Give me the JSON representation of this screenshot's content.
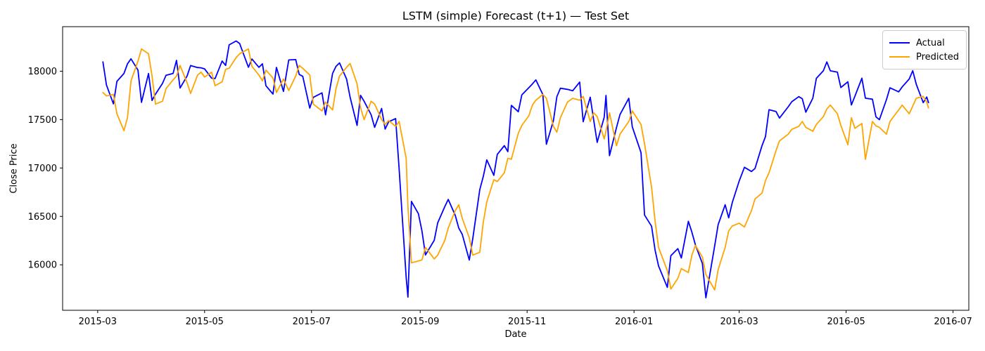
{
  "figure": {
    "title": "LSTM (simple) Forecast (t+1) — Test Set",
    "xlabel": "Date",
    "ylabel": "Close Price"
  },
  "chart_data": {
    "type": "line",
    "title": "LSTM (simple) Forecast (t+1) — Test Set",
    "xlabel": "Date",
    "ylabel": "Close Price",
    "grid": false,
    "legend_position": "upper right",
    "xlim": [
      "2015-02-09",
      "2016-07-10"
    ],
    "ylim": [
      15530,
      18460
    ],
    "x_ticks": [
      {
        "date": "2015-03-01",
        "label": "2015-03"
      },
      {
        "date": "2015-05-01",
        "label": "2015-05"
      },
      {
        "date": "2015-07-01",
        "label": "2015-07"
      },
      {
        "date": "2015-09-01",
        "label": "2015-09"
      },
      {
        "date": "2015-11-01",
        "label": "2015-11"
      },
      {
        "date": "2016-01-01",
        "label": "2016-01"
      },
      {
        "date": "2016-03-01",
        "label": "2016-03"
      },
      {
        "date": "2016-05-01",
        "label": "2016-05"
      },
      {
        "date": "2016-07-01",
        "label": "2016-07"
      }
    ],
    "y_ticks": [
      16000,
      16500,
      17000,
      17500,
      18000
    ],
    "dates": [
      "2015-03-04",
      "2015-03-06",
      "2015-03-10",
      "2015-03-12",
      "2015-03-16",
      "2015-03-18",
      "2015-03-20",
      "2015-03-24",
      "2015-03-26",
      "2015-03-30",
      "2015-04-01",
      "2015-04-03",
      "2015-04-07",
      "2015-04-09",
      "2015-04-13",
      "2015-04-15",
      "2015-04-17",
      "2015-04-21",
      "2015-04-23",
      "2015-04-27",
      "2015-04-29",
      "2015-05-01",
      "2015-05-05",
      "2015-05-07",
      "2015-05-11",
      "2015-05-13",
      "2015-05-15",
      "2015-05-19",
      "2015-05-21",
      "2015-05-26",
      "2015-05-28",
      "2015-06-01",
      "2015-06-03",
      "2015-06-05",
      "2015-06-09",
      "2015-06-11",
      "2015-06-15",
      "2015-06-18",
      "2015-06-22",
      "2015-06-24",
      "2015-06-26",
      "2015-06-30",
      "2015-07-02",
      "2015-07-07",
      "2015-07-09",
      "2015-07-13",
      "2015-07-15",
      "2015-07-17",
      "2015-07-21",
      "2015-07-23",
      "2015-07-27",
      "2015-07-29",
      "2015-07-31",
      "2015-08-04",
      "2015-08-06",
      "2015-08-10",
      "2015-08-12",
      "2015-08-14",
      "2015-08-18",
      "2015-08-20",
      "2015-08-24",
      "2015-08-25",
      "2015-08-27",
      "2015-08-31",
      "2015-09-02",
      "2015-09-04",
      "2015-09-09",
      "2015-09-11",
      "2015-09-15",
      "2015-09-17",
      "2015-09-21",
      "2015-09-23",
      "2015-09-25",
      "2015-09-29",
      "2015-10-01",
      "2015-10-05",
      "2015-10-07",
      "2015-10-09",
      "2015-10-13",
      "2015-10-15",
      "2015-10-19",
      "2015-10-21",
      "2015-10-23",
      "2015-10-27",
      "2015-10-29",
      "2015-11-02",
      "2015-11-04",
      "2015-11-06",
      "2015-11-10",
      "2015-11-12",
      "2015-11-16",
      "2015-11-18",
      "2015-11-20",
      "2015-11-24",
      "2015-11-27",
      "2015-12-01",
      "2015-12-03",
      "2015-12-07",
      "2015-12-09",
      "2015-12-11",
      "2015-12-15",
      "2015-12-16",
      "2015-12-18",
      "2015-12-22",
      "2015-12-24",
      "2015-12-29",
      "2015-12-31",
      "2016-01-05",
      "2016-01-07",
      "2016-01-11",
      "2016-01-13",
      "2016-01-15",
      "2016-01-20",
      "2016-01-22",
      "2016-01-26",
      "2016-01-28",
      "2016-02-01",
      "2016-02-03",
      "2016-02-05",
      "2016-02-09",
      "2016-02-11",
      "2016-02-16",
      "2016-02-18",
      "2016-02-22",
      "2016-02-24",
      "2016-02-26",
      "2016-03-01",
      "2016-03-04",
      "2016-03-08",
      "2016-03-10",
      "2016-03-14",
      "2016-03-16",
      "2016-03-18",
      "2016-03-22",
      "2016-03-24",
      "2016-03-29",
      "2016-03-31",
      "2016-04-04",
      "2016-04-06",
      "2016-04-08",
      "2016-04-12",
      "2016-04-14",
      "2016-04-18",
      "2016-04-20",
      "2016-04-22",
      "2016-04-26",
      "2016-04-28",
      "2016-05-02",
      "2016-05-04",
      "2016-05-06",
      "2016-05-10",
      "2016-05-12",
      "2016-05-16",
      "2016-05-18",
      "2016-05-20",
      "2016-05-24",
      "2016-05-26",
      "2016-05-31",
      "2016-06-02",
      "2016-06-06",
      "2016-06-08",
      "2016-06-10",
      "2016-06-14",
      "2016-06-16",
      "2016-06-17"
    ],
    "series": [
      {
        "name": "Actual",
        "color": "#0000ff",
        "values": [
          18096,
          17857,
          17663,
          17895,
          17977,
          18076,
          18128,
          18011,
          17678,
          17976,
          17698,
          17763,
          17875,
          17958,
          17977,
          18112,
          17826,
          17950,
          18058,
          18038,
          18035,
          18024,
          17928,
          17924,
          18105,
          18060,
          18272,
          18312,
          18286,
          18041,
          18126,
          18040,
          18076,
          17849,
          17764,
          18039,
          17791,
          18116,
          18120,
          17966,
          17947,
          17619,
          17730,
          17776,
          17549,
          17977,
          18050,
          18086,
          17919,
          17732,
          17440,
          17751,
          17690,
          17550,
          17420,
          17615,
          17402,
          17477,
          17511,
          16990,
          15871,
          15666,
          16655,
          16528,
          16351,
          16102,
          16253,
          16433,
          16600,
          16675,
          16510,
          16380,
          16315,
          16049,
          16272,
          16776,
          16912,
          17084,
          16924,
          17141,
          17231,
          17169,
          17647,
          17581,
          17756,
          17830,
          17868,
          17910,
          17758,
          17245,
          17489,
          17737,
          17824,
          17812,
          17798,
          17888,
          17478,
          17731,
          17492,
          17265,
          17525,
          17749,
          17128,
          17417,
          17552,
          17720,
          17425,
          17159,
          16514,
          16398,
          16151,
          15988,
          15767,
          16094,
          16167,
          16070,
          16449,
          16337,
          16205,
          16014,
          15660,
          16196,
          16414,
          16620,
          16485,
          16640,
          16865,
          17007,
          16964,
          16995,
          17229,
          17325,
          17602,
          17583,
          17516,
          17633,
          17685,
          17737,
          17716,
          17577,
          17721,
          17926,
          18004,
          18096,
          18004,
          17990,
          17831,
          17891,
          17651,
          17741,
          17928,
          17721,
          17711,
          17529,
          17500,
          17706,
          17828,
          17787,
          17838,
          17920,
          18005,
          17865,
          17675,
          17733,
          17675
        ]
      },
      {
        "name": "Predicted",
        "color": "#ffa500",
        "values": [
          17780,
          17745,
          17760,
          17560,
          17385,
          17520,
          17900,
          18105,
          18230,
          18180,
          17950,
          17660,
          17690,
          17820,
          17910,
          17950,
          18060,
          17880,
          17770,
          17960,
          17990,
          17940,
          17990,
          17850,
          17890,
          18020,
          18030,
          18140,
          18180,
          18230,
          18050,
          17960,
          17900,
          18010,
          17930,
          17780,
          17920,
          17800,
          17950,
          18060,
          18030,
          17960,
          17660,
          17590,
          17680,
          17600,
          17820,
          17950,
          18040,
          18080,
          17870,
          17620,
          17500,
          17690,
          17660,
          17500,
          17450,
          17490,
          17430,
          17480,
          17100,
          16600,
          16020,
          16040,
          16050,
          16180,
          16060,
          16100,
          16250,
          16380,
          16560,
          16620,
          16480,
          16280,
          16100,
          16130,
          16440,
          16650,
          16880,
          16860,
          16950,
          17100,
          17090,
          17360,
          17440,
          17540,
          17650,
          17700,
          17760,
          17720,
          17430,
          17370,
          17520,
          17680,
          17720,
          17700,
          17740,
          17480,
          17570,
          17530,
          17300,
          17380,
          17570,
          17230,
          17350,
          17480,
          17590,
          17450,
          17250,
          16800,
          16450,
          16180,
          15940,
          15750,
          15860,
          15960,
          15920,
          16100,
          16200,
          16080,
          15900,
          15740,
          15950,
          16180,
          16350,
          16400,
          16430,
          16390,
          16560,
          16680,
          16740,
          16870,
          16950,
          17180,
          17280,
          17350,
          17400,
          17430,
          17480,
          17420,
          17380,
          17450,
          17530,
          17610,
          17650,
          17560,
          17440,
          17240,
          17520,
          17410,
          17460,
          17090,
          17480,
          17435,
          17420,
          17350,
          17480,
          17600,
          17650,
          17560,
          17640,
          17720,
          17740,
          17680,
          17620
        ]
      }
    ]
  },
  "style": {
    "spine_color": "#000000",
    "tick_color": "#000000",
    "background": "#ffffff",
    "legend_border": "#cccccc"
  }
}
